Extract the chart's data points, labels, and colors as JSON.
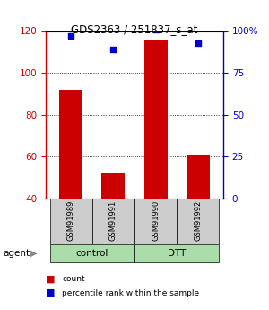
{
  "title": "GDS2363 / 251837_s_at",
  "samples": [
    "GSM91989",
    "GSM91991",
    "GSM91990",
    "GSM91992"
  ],
  "groups": [
    "control",
    "control",
    "DTT",
    "DTT"
  ],
  "bar_values": [
    92,
    52,
    116,
    61
  ],
  "dot_values": [
    97,
    89,
    101,
    93
  ],
  "ylim_left": [
    40,
    120
  ],
  "ylim_right": [
    0,
    100
  ],
  "yticks_left": [
    40,
    60,
    80,
    100,
    120
  ],
  "yticks_right": [
    0,
    25,
    50,
    75,
    100
  ],
  "bar_color": "#cc0000",
  "dot_color": "#0000cc",
  "control_color": "#aaddaa",
  "dtt_color": "#aaddaa",
  "sample_box_color": "#cccccc",
  "left_axis_color": "#cc0000",
  "right_axis_color": "#0000cc",
  "legend_bar_label": "count",
  "legend_dot_label": "percentile rank within the sample",
  "group_label_control": "control",
  "group_label_dtt": "DTT",
  "gridline_ticks": [
    60,
    80,
    100
  ]
}
